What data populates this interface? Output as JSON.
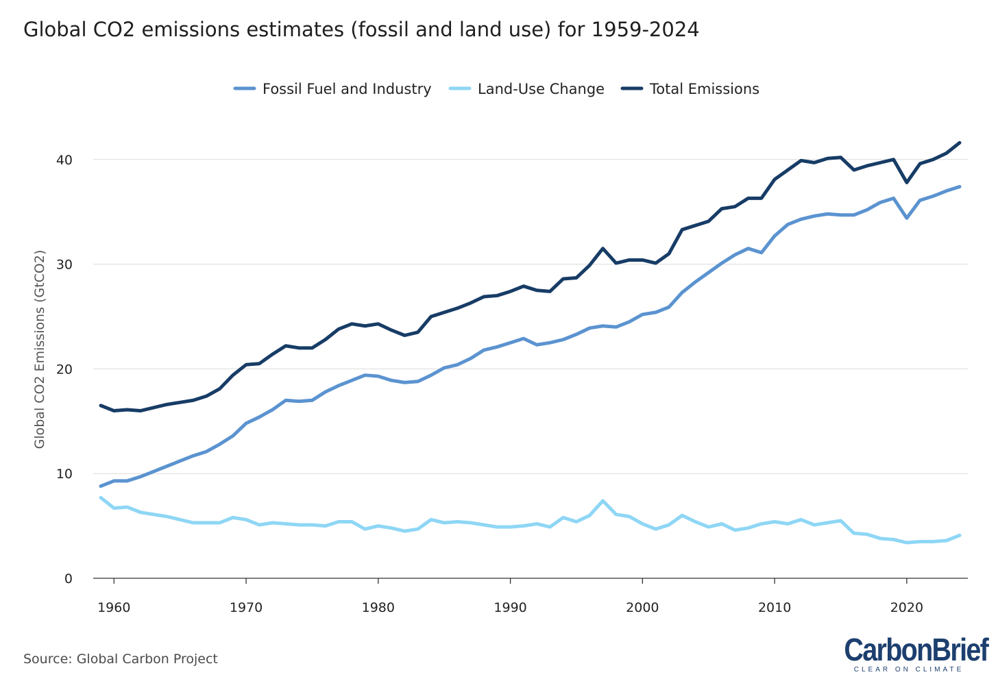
{
  "title": "Global CO2 emissions estimates (fossil and land use) for 1959-2024",
  "source": "Source: Global Carbon Project",
  "logo": {
    "wordmark": "CarbonBrief",
    "tagline": "CLEAR ON CLIMATE"
  },
  "chart_data": {
    "type": "line",
    "title": "Global CO2 emissions estimates (fossil and land use) for 1959-2024",
    "xlabel": "",
    "ylabel": "Global CO2 Emissions (GtCO2)",
    "xlim": [
      1959,
      2024
    ],
    "ylim": [
      0,
      43
    ],
    "x_ticks": [
      1960,
      1970,
      1980,
      1990,
      2000,
      2010,
      2020
    ],
    "y_ticks": [
      0,
      10,
      20,
      30,
      40
    ],
    "grid": "horizontal",
    "legend_position": "top-center",
    "x": [
      1959,
      1960,
      1961,
      1962,
      1963,
      1964,
      1965,
      1966,
      1967,
      1968,
      1969,
      1970,
      1971,
      1972,
      1973,
      1974,
      1975,
      1976,
      1977,
      1978,
      1979,
      1980,
      1981,
      1982,
      1983,
      1984,
      1985,
      1986,
      1987,
      1988,
      1989,
      1990,
      1991,
      1992,
      1993,
      1994,
      1995,
      1996,
      1997,
      1998,
      1999,
      2000,
      2001,
      2002,
      2003,
      2004,
      2005,
      2006,
      2007,
      2008,
      2009,
      2010,
      2011,
      2012,
      2013,
      2014,
      2015,
      2016,
      2017,
      2018,
      2019,
      2020,
      2021,
      2022,
      2023,
      2024
    ],
    "series": [
      {
        "name": "Fossil Fuel and Industry",
        "color": "#5b93d0",
        "values": [
          8.8,
          9.3,
          9.3,
          9.7,
          10.2,
          10.7,
          11.2,
          11.7,
          12.1,
          12.8,
          13.6,
          14.8,
          15.4,
          16.1,
          17.0,
          16.9,
          17.0,
          17.8,
          18.4,
          18.9,
          19.4,
          19.3,
          18.9,
          18.7,
          18.8,
          19.4,
          20.1,
          20.4,
          21.0,
          21.8,
          22.1,
          22.5,
          22.9,
          22.3,
          22.5,
          22.8,
          23.3,
          23.9,
          24.1,
          24.0,
          24.5,
          25.2,
          25.4,
          25.9,
          27.3,
          28.3,
          29.2,
          30.1,
          30.9,
          31.5,
          31.1,
          32.7,
          33.8,
          34.3,
          34.6,
          34.8,
          34.7,
          34.7,
          35.2,
          35.9,
          36.3,
          34.4,
          36.1,
          36.5,
          37.0,
          37.4
        ]
      },
      {
        "name": "Land-Use Change",
        "color": "#8ed6f5",
        "values": [
          7.7,
          6.7,
          6.8,
          6.3,
          6.1,
          5.9,
          5.6,
          5.3,
          5.3,
          5.3,
          5.8,
          5.6,
          5.1,
          5.3,
          5.2,
          5.1,
          5.1,
          5.0,
          5.4,
          5.4,
          4.7,
          5.0,
          4.8,
          4.5,
          4.7,
          5.6,
          5.3,
          5.4,
          5.3,
          5.1,
          4.9,
          4.9,
          5.0,
          5.2,
          4.9,
          5.8,
          5.4,
          6.0,
          7.4,
          6.1,
          5.9,
          5.2,
          4.7,
          5.1,
          6.0,
          5.4,
          4.9,
          5.2,
          4.6,
          4.8,
          5.2,
          5.4,
          5.2,
          5.6,
          5.1,
          5.3,
          5.5,
          4.3,
          4.2,
          3.8,
          3.7,
          3.4,
          3.5,
          3.5,
          3.6,
          4.1
        ]
      },
      {
        "name": "Total Emissions",
        "color": "#173c66",
        "values": [
          16.5,
          16.0,
          16.1,
          16.0,
          16.3,
          16.6,
          16.8,
          17.0,
          17.4,
          18.1,
          19.4,
          20.4,
          20.5,
          21.4,
          22.2,
          22.0,
          22.0,
          22.8,
          23.8,
          24.3,
          24.1,
          24.3,
          23.7,
          23.2,
          23.5,
          25.0,
          25.4,
          25.8,
          26.3,
          26.9,
          27.0,
          27.4,
          27.9,
          27.5,
          27.4,
          28.6,
          28.7,
          29.9,
          31.5,
          30.1,
          30.4,
          30.4,
          30.1,
          31.0,
          33.3,
          33.7,
          34.1,
          35.3,
          35.5,
          36.3,
          36.3,
          38.1,
          39.0,
          39.9,
          39.7,
          40.1,
          40.2,
          39.0,
          39.4,
          39.7,
          40.0,
          37.8,
          39.6,
          40.0,
          40.6,
          41.6
        ]
      }
    ]
  }
}
